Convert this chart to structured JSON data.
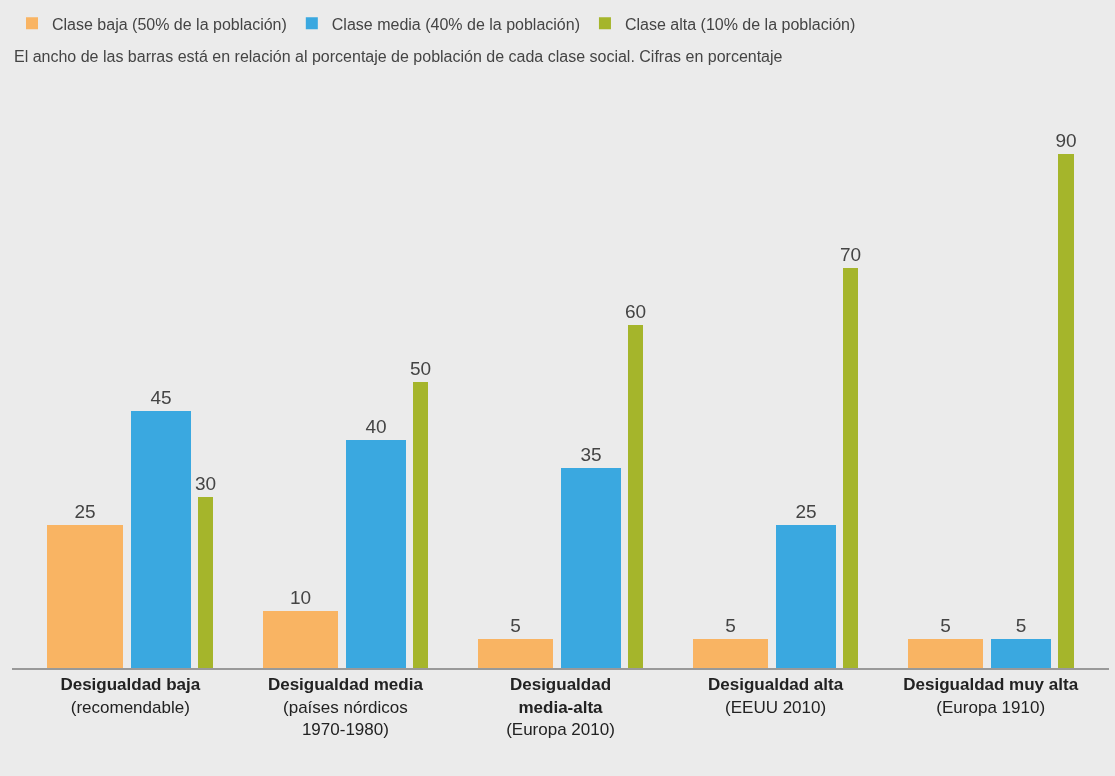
{
  "chart_data": {
    "type": "bar",
    "subtitle": "El ancho de las barras está en relación al porcentaje de población de cada clase social. Cifras en porcentaje",
    "categories": [
      "Desigualdad baja\n(recomendable)",
      "Desigualdad media\n(países nórdicos\n1970-1980)",
      "Desigualdad\nmedia-alta\n(Europa 2010)",
      "Desigualdad alta\n(EEUU 2010)",
      "Desigualdad muy alta\n(Europa 1910)"
    ],
    "series": [
      {
        "name": "Clase baja (50% de la población)",
        "color": "#f9b463",
        "values": [
          25,
          10,
          5,
          5,
          5
        ]
      },
      {
        "name": "Clase media (40% de la población)",
        "color": "#3aa8e0",
        "values": [
          45,
          40,
          35,
          25,
          5
        ]
      },
      {
        "name": "Clase alta (10% de la población)",
        "color": "#a5b52b",
        "values": [
          30,
          50,
          60,
          70,
          90
        ]
      }
    ],
    "data_labels": true,
    "legend": "top left"
  }
}
